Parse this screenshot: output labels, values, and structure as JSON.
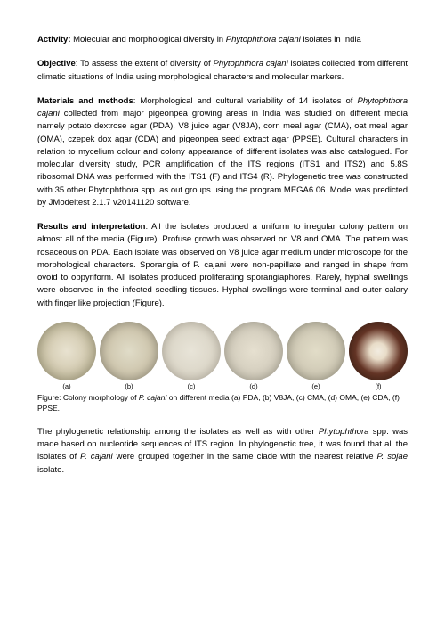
{
  "activity": {
    "label": "Activity:",
    "text1": " Molecular and morphological diversity in ",
    "italic1": "Phytophthora cajani",
    "text2": " isolates in India"
  },
  "objective": {
    "label": "Objective",
    "text1": ": To assess the extent of diversity of ",
    "italic1": "Phytophthora cajani",
    "text2": " isolates collected from different climatic situations of India using morphological characters and molecular markers."
  },
  "materials": {
    "label": "Materials and methods",
    "text1": ": Morphological and cultural variability of 14 isolates of ",
    "italic1": "Phytophthora cajani",
    "text2": " collected from major pigeonpea growing areas in India was studied on different media namely potato dextrose agar (PDA), V8 juice agar (V8JA), corn meal agar (CMA), oat meal agar (OMA), czepek dox agar (CDA) and pigeonpea seed extract agar (PPSE). Cultural characters in relation to mycelium colour and colony appearance of different isolates was also catalogued. For molecular diversity study, PCR amplification of the ITS regions (ITS1 and ITS2) and 5.8S ribosomal DNA was performed with the ITS1 (F) and ITS4 (R). Phylogenetic tree was constructed with 35 other Phytophthora spp. as out groups using the program MEGA6.06. Model was predicted by JModeltest 2.1.7 v20141120 software."
  },
  "results": {
    "label": "Results and interpretation",
    "text1": ":  All the isolates produced a uniform to irregular colony pattern on almost all of the media (Figure). Profuse growth was observed on V8 and OMA. The pattern was rosaceous on PDA.  Each isolate was observed on V8 juice agar medium under microscope for the morphological characters. Sporangia of P. cajani were non-papillate and ranged in shape from ovoid to obpyriform. All isolates produced proliferating sporangiaphores. Rarely, hyphal swellings were observed in the infected seedling tissues. Hyphal swellings were terminal and outer calary with finger like projection (Figure)."
  },
  "figure": {
    "labels": {
      "a": "(a)",
      "b": "(b)",
      "c": "(c)",
      "d": "(d)",
      "e": "(e)",
      "f": "(f)"
    },
    "caption_text1": "Figure: Colony morphology of ",
    "caption_italic1": "P. cajani",
    "caption_text2": " on different media (a) PDA, (b) V8JA, (c) CMA, (d) OMA, (e) CDA, (f) PPSE."
  },
  "phylo": {
    "text1": "The phylogenetic relationship among the isolates as well as with other ",
    "italic1": "Phytophthora",
    "text2": " spp. was made based on nucleotide sequences of ITS region. In phylogenetic tree, it was found that all the isolates of ",
    "italic2": "P. cajani",
    "text3": " were grouped together in the same clade with the nearest relative ",
    "italic3": "P. sojae",
    "text4": " isolate."
  }
}
